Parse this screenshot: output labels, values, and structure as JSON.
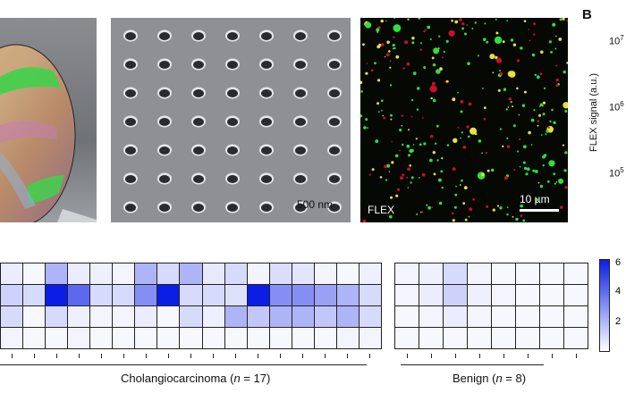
{
  "panels": {
    "label_B": "B",
    "sem_scale": "500 nm",
    "fluor_label": "FLEX",
    "fluor_scale": "10 µm",
    "ylabel": "FLEX signal (a.u.)",
    "yticks": [
      {
        "base": "10",
        "exp": "7"
      },
      {
        "base": "10",
        "exp": "6"
      },
      {
        "base": "10",
        "exp": "5"
      }
    ]
  },
  "heatmap": {
    "colorbar_ticks": [
      "6",
      "4",
      "2"
    ],
    "groups": [
      {
        "name": "Cholangiocarcinoma",
        "n": "17",
        "cols": 17,
        "values": [
          [
            0.5,
            0.2,
            2.0,
            0.5,
            0.4,
            0.3,
            2.0,
            1.0,
            2.0,
            0.6,
            1.0,
            0.3,
            0.9,
            0.7,
            0.3,
            0.2,
            0.4
          ],
          [
            1.2,
            1.0,
            6.0,
            4.0,
            1.0,
            1.0,
            3.0,
            6.0,
            1.0,
            1.0,
            0.8,
            6.0,
            3.0,
            3.0,
            2.5,
            2.0,
            1.0
          ],
          [
            1.0,
            0.2,
            1.0,
            0.4,
            0.3,
            0.3,
            0.5,
            0.2,
            1.0,
            0.4,
            2.0,
            1.5,
            2.0,
            2.0,
            1.5,
            2.0,
            1.0
          ],
          [
            0.3,
            0.2,
            0.2,
            0.3,
            0.2,
            0.2,
            0.2,
            0.2,
            0.2,
            0.2,
            0.2,
            0.2,
            0.2,
            0.2,
            0.2,
            0.3,
            0.3
          ]
        ]
      },
      {
        "name": "Benign",
        "n": "8",
        "cols": 8,
        "values": [
          [
            0.3,
            0.4,
            1.0,
            0.3,
            0.2,
            0.2,
            0.2,
            0.2
          ],
          [
            0.3,
            0.5,
            1.2,
            0.4,
            0.3,
            0.2,
            0.2,
            0.2
          ],
          [
            0.2,
            0.3,
            0.5,
            0.3,
            0.2,
            0.2,
            0.2,
            0.2
          ],
          [
            0.2,
            0.2,
            0.2,
            0.2,
            0.2,
            0.2,
            0.2,
            0.2
          ]
        ]
      }
    ],
    "colormap": {
      "low": "#ffffff",
      "high": "#0a1ee6",
      "max": 6
    }
  }
}
